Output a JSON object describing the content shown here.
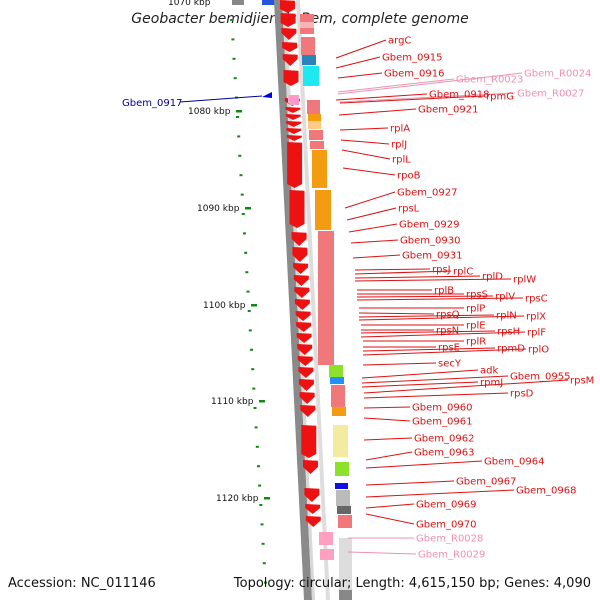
{
  "title": "Geobacter bemidjiensis Bem, complete genome",
  "top_tick_label": "1070 kbp",
  "accession": "Accession: NC_011146",
  "topology": "Topology: circular; Length: 4,615,150 bp; Genes: 4,090",
  "colors": {
    "label_red": "#dd1111",
    "label_pink": "#f090b0",
    "label_blue": "#000099",
    "tick_green": "#118811",
    "strand_red": "#ee1111",
    "gene_salmon": "#f0787a",
    "gene_orange": "#f39c12",
    "gene_cyan": "#1ee8f0",
    "gene_blue": "#2b83ba",
    "gene_green": "#8be22b",
    "gene_yellow": "#f3eca0",
    "gene_gray": "#9a9a9a",
    "gene_pink": "#ffa0c0"
  },
  "ticks": [
    {
      "label": "1080 kbp"
    },
    {
      "label": "1090 kbp"
    },
    {
      "label": "1100 kbp"
    },
    {
      "label": "1110 kbp"
    },
    {
      "label": "1120 kbp"
    }
  ],
  "left_labels": [
    {
      "text": "Gbem_0917",
      "color": "blue"
    }
  ],
  "gene_labels": [
    {
      "text": "argC",
      "color": "red"
    },
    {
      "text": "Gbem_0915",
      "color": "red"
    },
    {
      "text": "Gbem_0916",
      "color": "red"
    },
    {
      "text": "Gbem_R0023",
      "color": "pink"
    },
    {
      "text": "Gbem_R0024",
      "color": "pink"
    },
    {
      "text": "Gbem_0918",
      "color": "red"
    },
    {
      "text": "rpmG",
      "color": "red"
    },
    {
      "text": "Gbem_R0027",
      "color": "pink"
    },
    {
      "text": "Gbem_0921",
      "color": "red"
    },
    {
      "text": "rplA",
      "color": "red"
    },
    {
      "text": "rplJ",
      "color": "red"
    },
    {
      "text": "rplL",
      "color": "red"
    },
    {
      "text": "rpoB",
      "color": "red"
    },
    {
      "text": "Gbem_0927",
      "color": "red"
    },
    {
      "text": "rpsL",
      "color": "red"
    },
    {
      "text": "Gbem_0929",
      "color": "red"
    },
    {
      "text": "Gbem_0930",
      "color": "red"
    },
    {
      "text": "Gbem_0931",
      "color": "red"
    },
    {
      "text": "rpsJ",
      "color": "red"
    },
    {
      "text": "rplC",
      "color": "red"
    },
    {
      "text": "rplD",
      "color": "red"
    },
    {
      "text": "rplW",
      "color": "red"
    },
    {
      "text": "rplB",
      "color": "red"
    },
    {
      "text": "rpsS",
      "color": "red"
    },
    {
      "text": "rplV",
      "color": "red"
    },
    {
      "text": "rpsC",
      "color": "red"
    },
    {
      "text": "rplP",
      "color": "red"
    },
    {
      "text": "rpsQ",
      "color": "red"
    },
    {
      "text": "rplN",
      "color": "red"
    },
    {
      "text": "rplX",
      "color": "red"
    },
    {
      "text": "rplE",
      "color": "red"
    },
    {
      "text": "rpsN",
      "color": "red"
    },
    {
      "text": "rpsH",
      "color": "red"
    },
    {
      "text": "rplF",
      "color": "red"
    },
    {
      "text": "rplR",
      "color": "red"
    },
    {
      "text": "rpsE",
      "color": "red"
    },
    {
      "text": "rpmD",
      "color": "red"
    },
    {
      "text": "rplO",
      "color": "red"
    },
    {
      "text": "secY",
      "color": "red"
    },
    {
      "text": "adk",
      "color": "red"
    },
    {
      "text": "Gbem_0955",
      "color": "red"
    },
    {
      "text": "rpmJ",
      "color": "red"
    },
    {
      "text": "rpsM",
      "color": "red"
    },
    {
      "text": "rpsD",
      "color": "red"
    },
    {
      "text": "Gbem_0960",
      "color": "red"
    },
    {
      "text": "Gbem_0961",
      "color": "red"
    },
    {
      "text": "Gbem_0962",
      "color": "red"
    },
    {
      "text": "Gbem_0963",
      "color": "red"
    },
    {
      "text": "Gbem_0964",
      "color": "red"
    },
    {
      "text": "Gbem_0967",
      "color": "red"
    },
    {
      "text": "Gbem_0968",
      "color": "red"
    },
    {
      "text": "Gbem_0969",
      "color": "red"
    },
    {
      "text": "Gbem_0970",
      "color": "red"
    },
    {
      "text": "Gbem_R0028",
      "color": "pink"
    },
    {
      "text": "Gbem_R0029",
      "color": "pink"
    }
  ]
}
